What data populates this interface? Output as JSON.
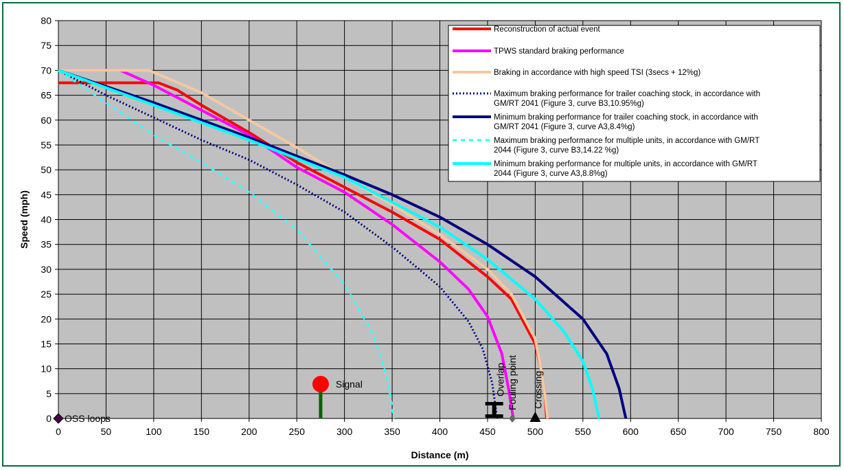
{
  "chart_data": {
    "type": "line",
    "xlabel": "Distance (m)",
    "ylabel": "Speed  (mph)",
    "xlim": [
      0,
      800
    ],
    "ylim": [
      0,
      80
    ],
    "x_ticks": [
      0,
      50,
      100,
      150,
      200,
      250,
      300,
      350,
      400,
      450,
      500,
      550,
      600,
      650,
      700,
      750,
      800
    ],
    "y_ticks": [
      0,
      5,
      10,
      15,
      20,
      25,
      30,
      35,
      40,
      45,
      50,
      55,
      60,
      65,
      70,
      75,
      80
    ],
    "grid": true,
    "plot_background": "#c0c0c0",
    "legend_position": "top-right",
    "series": [
      {
        "name": "Reconstruction of actual event",
        "color": "#ff0000",
        "style": "solid",
        "points": [
          [
            0,
            67.5
          ],
          [
            105,
            67.5
          ],
          [
            125,
            66
          ],
          [
            150,
            63
          ],
          [
            200,
            57.5
          ],
          [
            250,
            51.5
          ],
          [
            300,
            46.5
          ],
          [
            350,
            41.5
          ],
          [
            400,
            36
          ],
          [
            450,
            28.5
          ],
          [
            475,
            24
          ],
          [
            500,
            15
          ],
          [
            506,
            10
          ],
          [
            510,
            5
          ],
          [
            512,
            0
          ]
        ]
      },
      {
        "name": "TPWS standard braking performance",
        "color": "#ff00ff",
        "style": "solid",
        "points": [
          [
            0,
            70
          ],
          [
            65,
            70
          ],
          [
            100,
            67
          ],
          [
            150,
            62
          ],
          [
            200,
            57
          ],
          [
            250,
            50.5
          ],
          [
            300,
            45.5
          ],
          [
            350,
            39
          ],
          [
            400,
            31.5
          ],
          [
            430,
            26
          ],
          [
            450,
            20.5
          ],
          [
            465,
            13
          ],
          [
            472,
            6
          ],
          [
            477,
            0
          ]
        ]
      },
      {
        "name": "Braking in accordance with high speed TSI (3secs + 12%g)",
        "color": "#f5c8a0",
        "style": "solid",
        "points": [
          [
            0,
            70
          ],
          [
            95,
            70
          ],
          [
            150,
            65.5
          ],
          [
            200,
            60
          ],
          [
            250,
            54.5
          ],
          [
            300,
            48.5
          ],
          [
            350,
            43
          ],
          [
            400,
            37
          ],
          [
            450,
            30
          ],
          [
            475,
            25
          ],
          [
            500,
            16
          ],
          [
            506,
            10
          ],
          [
            510,
            5
          ],
          [
            513,
            0
          ]
        ]
      },
      {
        "name": "Maximum braking performance for trailer coaching stock, in accordance with GM/RT 2041 (Figure 3, curve B3,10.95%g)",
        "color": "#000080",
        "style": "dotted",
        "points": [
          [
            0,
            70
          ],
          [
            50,
            65
          ],
          [
            100,
            60.5
          ],
          [
            150,
            56
          ],
          [
            200,
            52
          ],
          [
            250,
            47
          ],
          [
            300,
            41.5
          ],
          [
            350,
            34.5
          ],
          [
            400,
            26.5
          ],
          [
            430,
            19.5
          ],
          [
            445,
            14
          ],
          [
            455,
            7
          ],
          [
            460,
            0
          ]
        ]
      },
      {
        "name": "Minimum braking performance for trailer coaching stock, in accordance with GM/RT 2041 (Figure 3, curve A3,8.4%g)",
        "color": "#000080",
        "style": "solid",
        "points": [
          [
            0,
            70
          ],
          [
            100,
            63.5
          ],
          [
            200,
            56.5
          ],
          [
            300,
            49
          ],
          [
            350,
            45
          ],
          [
            400,
            40.5
          ],
          [
            450,
            35
          ],
          [
            500,
            28.5
          ],
          [
            550,
            20
          ],
          [
            575,
            13
          ],
          [
            588,
            6
          ],
          [
            595,
            0
          ]
        ]
      },
      {
        "name": "Maximum braking performance for multiple units, in accordance with GM/RT 2044 (Figure 3, curve B3,14.22 %g)",
        "color": "#33ffff",
        "style": "dashed",
        "points": [
          [
            0,
            70
          ],
          [
            50,
            63.5
          ],
          [
            100,
            57
          ],
          [
            150,
            51.5
          ],
          [
            200,
            45.5
          ],
          [
            250,
            38
          ],
          [
            300,
            27
          ],
          [
            330,
            17
          ],
          [
            345,
            8
          ],
          [
            352,
            0
          ]
        ]
      },
      {
        "name": "Minimum braking performance for multiple units, in accordance with GM/RT 2044 (Figure 3, curve A3,8.8%g)",
        "color": "#00ffff",
        "style": "solid",
        "points": [
          [
            0,
            70
          ],
          [
            100,
            63
          ],
          [
            200,
            56
          ],
          [
            300,
            48.5
          ],
          [
            400,
            38.5
          ],
          [
            450,
            32
          ],
          [
            500,
            24
          ],
          [
            530,
            17.5
          ],
          [
            550,
            11.5
          ],
          [
            560,
            6
          ],
          [
            567,
            0
          ]
        ]
      }
    ],
    "annotations": [
      {
        "label": "OSS loops",
        "marker": "diamond",
        "x": 0,
        "y": 0,
        "color": "#4b0040"
      },
      {
        "label": "Signal",
        "marker": "signal",
        "x": 275,
        "y": 0,
        "head_color": "#ff0000",
        "post_color": "#006400"
      },
      {
        "label": "Overlap",
        "marker": "buffer",
        "x": 457,
        "y": 0
      },
      {
        "label": "Fouling point",
        "marker": "diamond",
        "x": 476,
        "y": 0,
        "color": "#666666"
      },
      {
        "label": "Crossing",
        "marker": "triangle",
        "x": 500,
        "y": 0,
        "color": "#000000"
      }
    ]
  }
}
